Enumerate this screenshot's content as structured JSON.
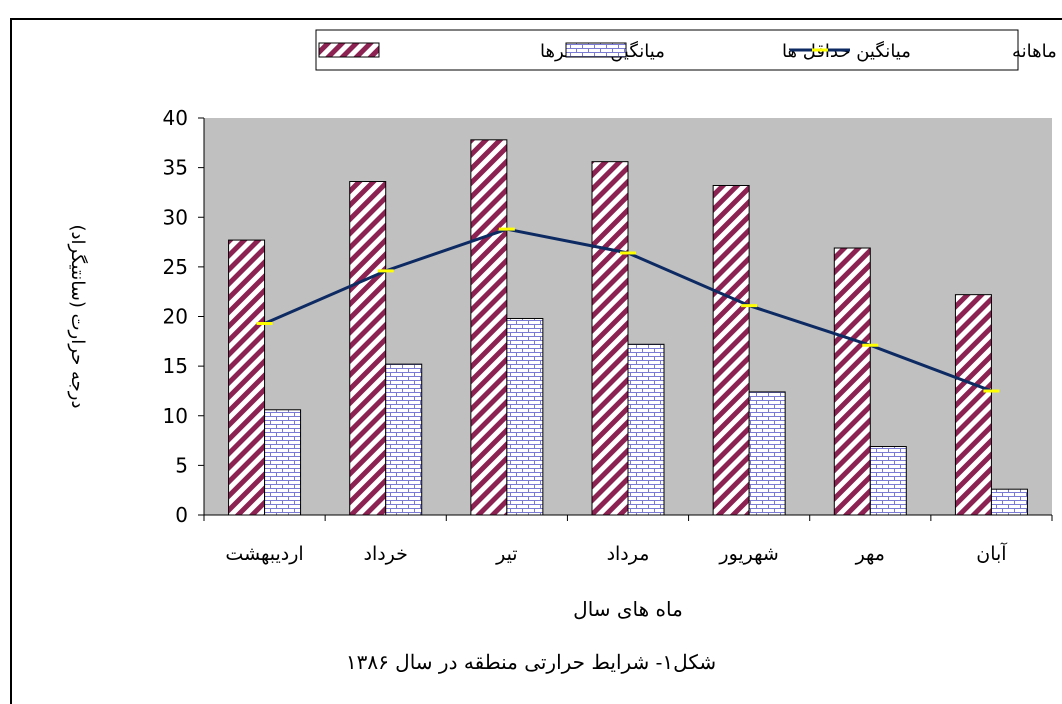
{
  "chart_data": {
    "type": "bar",
    "categories": [
      "اردیبهشت",
      "خرداد",
      "تیر",
      "مرداد",
      "شهریور",
      "مهر",
      "آبان"
    ],
    "series": [
      {
        "name": "میانگین حداکثرها",
        "kind": "bar",
        "pattern": "diagonal-stripes",
        "color": "#8b2252",
        "values": [
          27.7,
          33.6,
          37.8,
          35.6,
          33.2,
          26.9,
          22.2
        ]
      },
      {
        "name": "میانگین حداقل ها",
        "kind": "bar",
        "pattern": "brick",
        "color": "#7b7bd6",
        "values": [
          10.6,
          15.2,
          19.8,
          17.2,
          12.4,
          6.9,
          2.6
        ]
      },
      {
        "name": "میانگین ماهانه",
        "kind": "line",
        "color": "#0d2a63",
        "marker_color": "#ffff00",
        "values": [
          19.3,
          24.6,
          28.8,
          26.4,
          21.1,
          17.1,
          12.5
        ]
      }
    ],
    "ylim": [
      0,
      40
    ],
    "yticks": [
      0,
      5,
      10,
      15,
      20,
      25,
      30,
      35,
      40
    ],
    "xlabel": "ماه های سال",
    "ylabel": "درجه حرارت (سانتیگراد)",
    "legend_position": "top",
    "plot_background": "#c0c0c0",
    "grid": false
  },
  "caption": "شکل۱- شرایط حرارتی منطقه در سال ۱۳۸۶"
}
